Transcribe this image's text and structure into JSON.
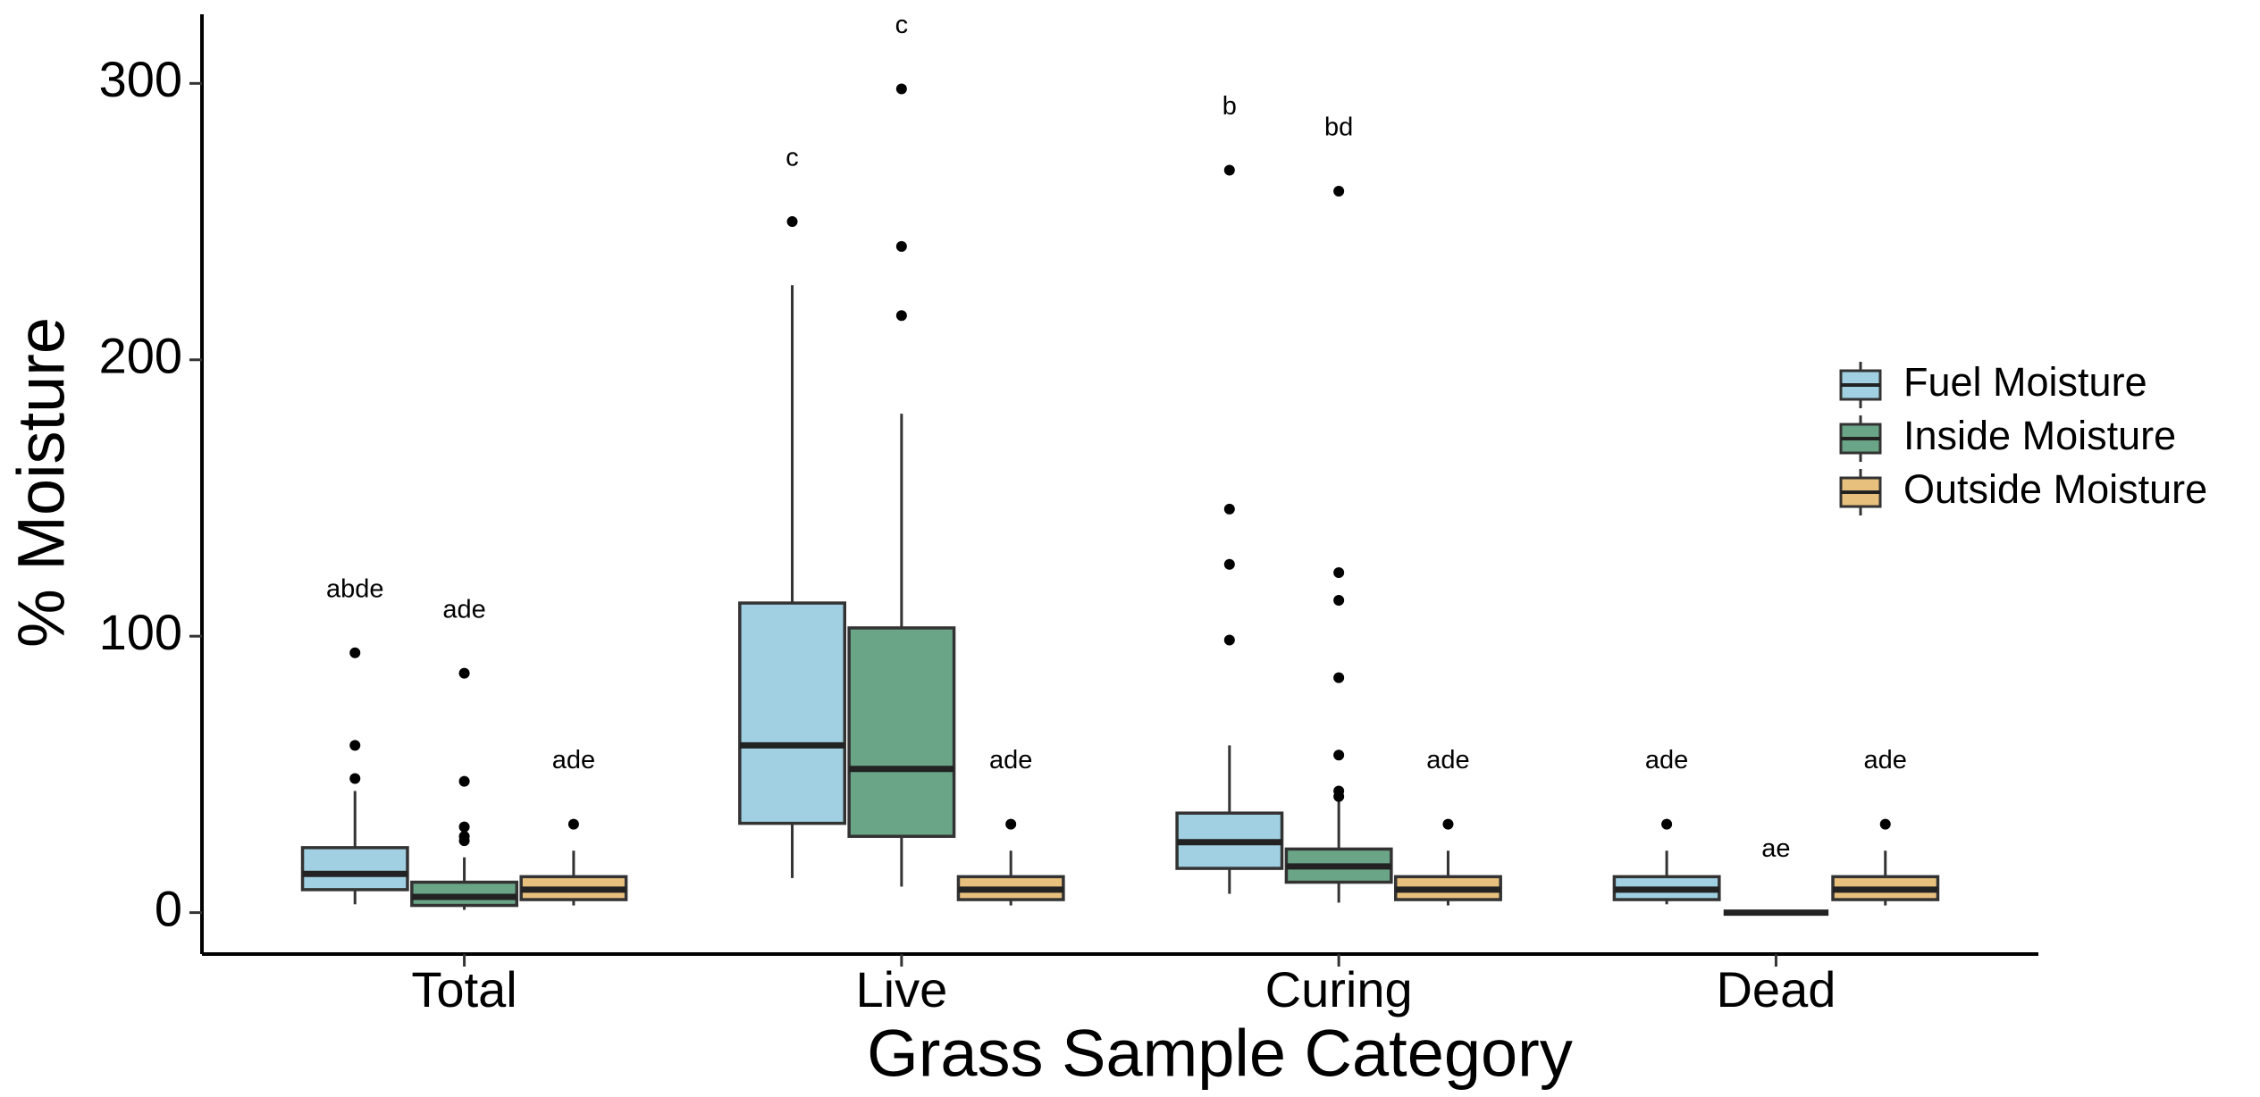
{
  "chart_data": {
    "type": "box",
    "x_label": "Grass Sample Category",
    "y_label": "% Moisture",
    "categories": [
      "Total",
      "Live",
      "Curing",
      "Dead"
    ],
    "ylim": [
      -15,
      325
    ],
    "yticks": [
      0,
      100,
      200,
      300
    ],
    "legend_position": "right",
    "series": [
      {
        "name": "Fuel Moisture",
        "color": "#a0d0e2",
        "whisker_low": [
          3,
          12.5,
          6.8,
          3
        ],
        "q1": [
          8.3,
          32.3,
          16,
          4.7
        ],
        "median": [
          14,
          60.5,
          25.5,
          8.3
        ],
        "q3": [
          23.5,
          112,
          36,
          13
        ],
        "whisker_high": [
          44,
          227,
          60.5,
          22.4
        ],
        "outliers": [
          [
            94,
            60.5,
            48.5
          ],
          [
            250
          ],
          [
            268.6,
            146,
            126,
            98.6
          ],
          [
            32
          ]
        ],
        "labels": [
          "abde",
          "c",
          "b",
          "ade"
        ]
      },
      {
        "name": "Inside Moisture",
        "color": "#6ba587",
        "whisker_low": [
          1,
          9.4,
          3.6,
          0
        ],
        "q1": [
          2.6,
          27.6,
          11,
          0
        ],
        "median": [
          5.7,
          52,
          16.7,
          0
        ],
        "q3": [
          11,
          103,
          23,
          0
        ],
        "whisker_high": [
          20,
          180.5,
          44,
          0
        ],
        "outliers": [
          [
            86.6,
            47.5,
            31,
            27.6,
            26
          ],
          [
            298,
            241,
            216
          ],
          [
            261,
            123,
            113,
            85,
            57,
            44,
            42
          ],
          []
        ],
        "labels": [
          "ade",
          "c",
          "bd",
          "ae"
        ]
      },
      {
        "name": "Outside Moisture",
        "color": "#e8c07e",
        "whisker_low": [
          2.6,
          2.6,
          2.6,
          2.6
        ],
        "q1": [
          4.7,
          4.7,
          4.7,
          4.7
        ],
        "median": [
          8.3,
          8.3,
          8.3,
          8.3
        ],
        "q3": [
          13,
          13,
          13,
          13
        ],
        "whisker_high": [
          22.4,
          22.4,
          22.4,
          22.4
        ],
        "outliers": [
          [
            32
          ],
          [
            32
          ],
          [
            32
          ],
          [
            32
          ]
        ],
        "labels": [
          "ade",
          "ade",
          "ade",
          "ade"
        ]
      }
    ]
  }
}
